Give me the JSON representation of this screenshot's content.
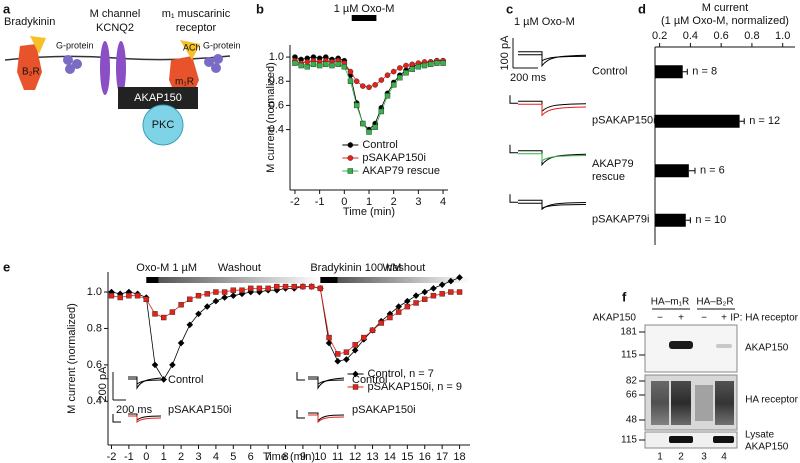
{
  "panel_labels": {
    "a": "a",
    "b": "b",
    "c": "c",
    "d": "d",
    "e": "e",
    "f": "f"
  },
  "diagram": {
    "bradykinin": "Bradykinin",
    "b2r": "B₂R",
    "g_protein_left": "G-protein",
    "m_channel": [
      "M channel",
      "KCNQ2"
    ],
    "m1_receptor": [
      "m₁ muscarinic",
      "receptor"
    ],
    "ach": "ACh",
    "m1r": "m₁R",
    "g_protein_right": "G-protein",
    "akap150": "AKAP150",
    "pkc": "PKC"
  },
  "panel_c": {
    "drug": "1 µM Oxo-M",
    "scale_current": "100 pA",
    "scale_time": "200 ms",
    "trace_colors": [
      "#000000",
      "#e2231a",
      "#35b34a",
      "#000000"
    ]
  },
  "chart_data": [
    {
      "type": "line",
      "applications": [
        {
          "label": "1 µM Oxo-M",
          "x0": 0.3,
          "x1": 1.3
        }
      ],
      "xlabel": "Time (min)",
      "ylabel": "M current (normalized)",
      "x": [
        -2,
        -1.75,
        -1.5,
        -1.25,
        -1,
        -0.75,
        -0.5,
        -0.25,
        0,
        0.25,
        0.5,
        0.75,
        1,
        1.25,
        1.5,
        1.75,
        2,
        2.25,
        2.5,
        2.75,
        3,
        3.25,
        3.5,
        3.75,
        4
      ],
      "series": [
        {
          "name": "Control",
          "color": "#000000",
          "marker": "circle",
          "values": [
            1.0,
            0.98,
            0.99,
            1.0,
            0.99,
            1.0,
            0.98,
            0.99,
            0.97,
            0.85,
            0.62,
            0.45,
            0.4,
            0.45,
            0.58,
            0.7,
            0.79,
            0.85,
            0.89,
            0.92,
            0.94,
            0.95,
            0.96,
            0.97,
            0.97
          ]
        },
        {
          "name": "pSAKAP150i",
          "color": "#e2231a",
          "marker": "circle",
          "values": [
            0.97,
            0.95,
            0.96,
            0.97,
            0.96,
            0.97,
            0.96,
            0.97,
            0.95,
            0.88,
            0.8,
            0.76,
            0.75,
            0.77,
            0.81,
            0.85,
            0.88,
            0.91,
            0.93,
            0.94,
            0.95,
            0.96,
            0.96,
            0.97,
            0.97
          ]
        },
        {
          "name": "AKAP79 rescue",
          "color": "#35b34a",
          "marker": "square",
          "values": [
            0.95,
            0.93,
            0.92,
            0.94,
            0.93,
            0.94,
            0.93,
            0.94,
            0.92,
            0.8,
            0.6,
            0.45,
            0.38,
            0.42,
            0.55,
            0.68,
            0.77,
            0.83,
            0.87,
            0.9,
            0.92,
            0.93,
            0.94,
            0.95,
            0.95
          ]
        }
      ],
      "xlim": [
        -2.2,
        4.2
      ],
      "ylim": [
        -0.1,
        1.1
      ],
      "xticks": [
        -2,
        -1,
        0,
        1,
        2,
        3,
        4
      ],
      "yticks": [
        0.4,
        0.6,
        0.8,
        {
          "value": 1,
          "label": "1.0"
        }
      ],
      "grid": false,
      "legend": "lower right"
    },
    {
      "type": "barh",
      "xlabel": [
        "M current",
        "(1 µM Oxo-M, normalized)"
      ],
      "categories": [
        "Control",
        "pSAKAP150i",
        "AKAP79 rescue",
        "pSAKAP79i"
      ],
      "values": [
        0.35,
        0.72,
        0.39,
        0.37
      ],
      "errors": [
        0.03,
        0.03,
        0.04,
        0.03
      ],
      "annotations": [
        "n = 8",
        "n = 12",
        "n = 6",
        "n = 10"
      ],
      "color": "#000000",
      "xlim": [
        0.17,
        1.08
      ],
      "xticks": [
        0.2,
        0.4,
        0.6,
        0.8,
        {
          "value": 1,
          "label": "1.0"
        }
      ],
      "grid": false
    },
    {
      "type": "line",
      "applications": [
        {
          "label": "Oxo-M 1 µM",
          "x0": 0,
          "x1": 0.7,
          "washout": "Washout",
          "washout_end": 10
        },
        {
          "label": "Bradykinin 100 nM",
          "x0": 10,
          "x1": 11,
          "washout": "Washout",
          "washout_end": 18.6
        }
      ],
      "xlabel": "Time (min)",
      "ylabel": "M current (normalized)",
      "x": [
        -2,
        -1.5,
        -1,
        -0.5,
        0,
        0.5,
        1,
        1.5,
        2,
        2.5,
        3,
        3.5,
        4,
        4.5,
        5,
        5.5,
        6,
        6.5,
        7,
        7.5,
        8,
        8.5,
        9,
        9.5,
        10,
        10.5,
        11,
        11.5,
        12,
        12.5,
        13,
        13.5,
        14,
        14.5,
        15,
        15.5,
        16,
        16.5,
        17,
        17.5,
        18
      ],
      "series": [
        {
          "name": "Control, n = 7",
          "color": "#000000",
          "marker": "diamond",
          "values": [
            1.0,
            0.99,
            1.0,
            0.99,
            0.97,
            0.6,
            0.52,
            0.6,
            0.72,
            0.82,
            0.88,
            0.92,
            0.95,
            0.97,
            0.98,
            0.99,
            1.0,
            1.0,
            1.01,
            1.01,
            1.02,
            1.02,
            1.03,
            1.03,
            1.02,
            0.72,
            0.62,
            0.63,
            0.68,
            0.74,
            0.79,
            0.84,
            0.88,
            0.92,
            0.95,
            0.98,
            1.0,
            1.02,
            1.04,
            1.06,
            1.08
          ]
        },
        {
          "name": "pSAKAP150i, n = 9",
          "color": "#e2231a",
          "marker": "square",
          "values": [
            0.98,
            0.97,
            0.98,
            0.98,
            0.96,
            0.88,
            0.86,
            0.89,
            0.93,
            0.96,
            0.98,
            0.99,
            1.0,
            1.0,
            1.01,
            1.01,
            1.02,
            1.02,
            1.02,
            1.03,
            1.03,
            1.03,
            1.03,
            1.03,
            1.02,
            0.75,
            0.66,
            0.67,
            0.71,
            0.75,
            0.79,
            0.83,
            0.86,
            0.89,
            0.92,
            0.94,
            0.96,
            0.98,
            0.99,
            1.0,
            1.0
          ]
        }
      ],
      "xlim": [
        -2.2,
        18.6
      ],
      "ylim": [
        0.16,
        1.11
      ],
      "xticks": [
        -2,
        -1,
        0,
        1,
        2,
        3,
        4,
        5,
        6,
        7,
        8,
        9,
        10,
        11,
        12,
        13,
        14,
        15,
        16,
        17,
        18
      ],
      "yticks": [
        0.4,
        0.6,
        0.8,
        {
          "value": 1,
          "label": "1.0"
        }
      ],
      "grid": false,
      "legend": "lower right"
    }
  ],
  "panel_e_insets": {
    "scale_current": "200 pA",
    "scale_time": "200 ms",
    "labels": [
      "Control",
      "pSAKAP150i",
      "Control",
      "pSAKAP150i"
    ]
  },
  "blot": {
    "columns": [
      "HA–m₁R",
      "HA–B₂R"
    ],
    "row_label": "AKAP150",
    "signs": [
      "−",
      "+",
      "−",
      "+"
    ],
    "ip": "IP: HA receptor",
    "markers_top": [
      181,
      115
    ],
    "markers_mid": [
      82,
      66,
      48
    ],
    "markers_bottom": [
      115
    ],
    "band_labels": [
      "AKAP150",
      "HA receptor"
    ],
    "lysate": [
      "Lysate",
      "AKAP150"
    ],
    "lanes": [
      1,
      2,
      3,
      4
    ]
  }
}
